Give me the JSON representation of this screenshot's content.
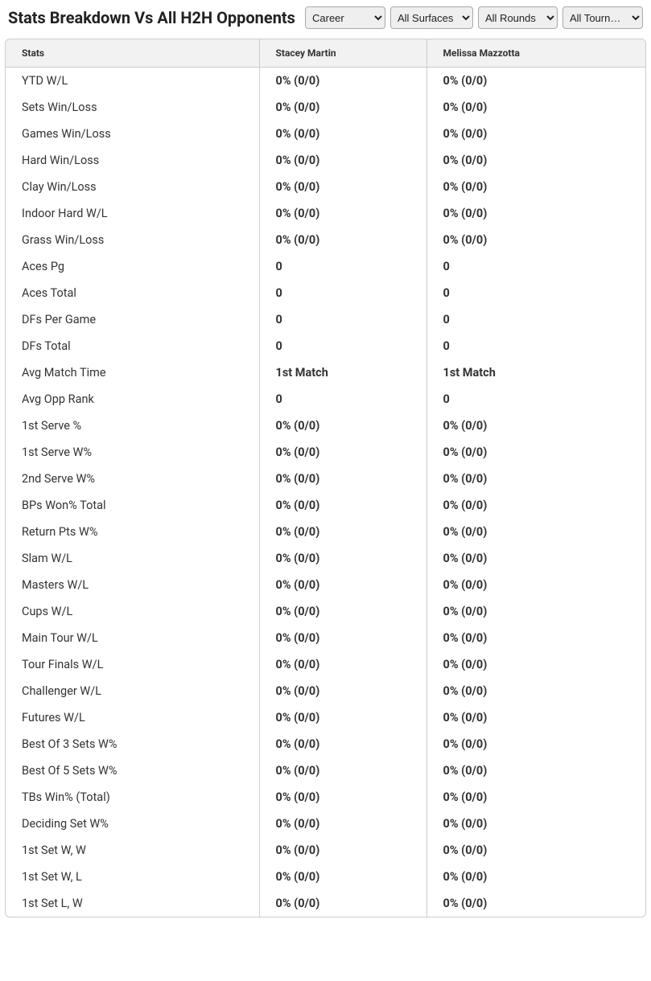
{
  "header": {
    "title": "Stats Breakdown Vs All H2H Opponents"
  },
  "filters": {
    "career": {
      "selected": "Career",
      "options": [
        "Career"
      ]
    },
    "surfaces": {
      "selected": "All Surfaces",
      "options": [
        "All Surfaces"
      ]
    },
    "rounds": {
      "selected": "All Rounds",
      "options": [
        "All Rounds"
      ]
    },
    "tournaments": {
      "selected": "All Tourn…",
      "options": [
        "All Tourn…"
      ]
    }
  },
  "table": {
    "headers": {
      "stats": "Stats",
      "player1": "Stacey Martin",
      "player2": "Melissa Mazzotta"
    },
    "rows": [
      {
        "label": "YTD W/L",
        "p1": "0% (0/0)",
        "p2": "0% (0/0)"
      },
      {
        "label": "Sets Win/Loss",
        "p1": "0% (0/0)",
        "p2": "0% (0/0)"
      },
      {
        "label": "Games Win/Loss",
        "p1": "0% (0/0)",
        "p2": "0% (0/0)"
      },
      {
        "label": "Hard Win/Loss",
        "p1": "0% (0/0)",
        "p2": "0% (0/0)"
      },
      {
        "label": "Clay Win/Loss",
        "p1": "0% (0/0)",
        "p2": "0% (0/0)"
      },
      {
        "label": "Indoor Hard W/L",
        "p1": "0% (0/0)",
        "p2": "0% (0/0)"
      },
      {
        "label": "Grass Win/Loss",
        "p1": "0% (0/0)",
        "p2": "0% (0/0)"
      },
      {
        "label": "Aces Pg",
        "p1": "0",
        "p2": "0"
      },
      {
        "label": "Aces Total",
        "p1": "0",
        "p2": "0"
      },
      {
        "label": "DFs Per Game",
        "p1": "0",
        "p2": "0"
      },
      {
        "label": "DFs Total",
        "p1": "0",
        "p2": "0"
      },
      {
        "label": "Avg Match Time",
        "p1": "1st Match",
        "p2": "1st Match"
      },
      {
        "label": "Avg Opp Rank",
        "p1": "0",
        "p2": "0"
      },
      {
        "label": "1st Serve %",
        "p1": "0% (0/0)",
        "p2": "0% (0/0)"
      },
      {
        "label": "1st Serve W%",
        "p1": "0% (0/0)",
        "p2": "0% (0/0)"
      },
      {
        "label": "2nd Serve W%",
        "p1": "0% (0/0)",
        "p2": "0% (0/0)"
      },
      {
        "label": "BPs Won% Total",
        "p1": "0% (0/0)",
        "p2": "0% (0/0)"
      },
      {
        "label": "Return Pts W%",
        "p1": "0% (0/0)",
        "p2": "0% (0/0)"
      },
      {
        "label": "Slam W/L",
        "p1": "0% (0/0)",
        "p2": "0% (0/0)"
      },
      {
        "label": "Masters W/L",
        "p1": "0% (0/0)",
        "p2": "0% (0/0)"
      },
      {
        "label": "Cups W/L",
        "p1": "0% (0/0)",
        "p2": "0% (0/0)"
      },
      {
        "label": "Main Tour W/L",
        "p1": "0% (0/0)",
        "p2": "0% (0/0)"
      },
      {
        "label": "Tour Finals W/L",
        "p1": "0% (0/0)",
        "p2": "0% (0/0)"
      },
      {
        "label": "Challenger W/L",
        "p1": "0% (0/0)",
        "p2": "0% (0/0)"
      },
      {
        "label": "Futures W/L",
        "p1": "0% (0/0)",
        "p2": "0% (0/0)"
      },
      {
        "label": "Best Of 3 Sets W%",
        "p1": "0% (0/0)",
        "p2": "0% (0/0)"
      },
      {
        "label": "Best Of 5 Sets W%",
        "p1": "0% (0/0)",
        "p2": "0% (0/0)"
      },
      {
        "label": "TBs Win% (Total)",
        "p1": "0% (0/0)",
        "p2": "0% (0/0)"
      },
      {
        "label": "Deciding Set W%",
        "p1": "0% (0/0)",
        "p2": "0% (0/0)"
      },
      {
        "label": "1st Set W, W",
        "p1": "0% (0/0)",
        "p2": "0% (0/0)"
      },
      {
        "label": "1st Set W, L",
        "p1": "0% (0/0)",
        "p2": "0% (0/0)"
      },
      {
        "label": "1st Set L, W",
        "p1": "0% (0/0)",
        "p2": "0% (0/0)"
      }
    ]
  }
}
